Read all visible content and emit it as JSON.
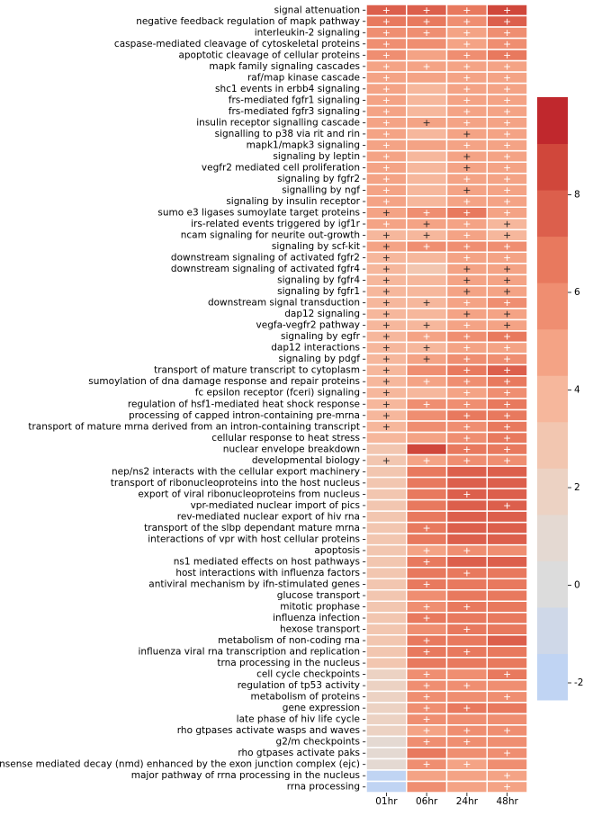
{
  "chart_data": {
    "type": "heatmap",
    "y_categories": [
      "signal attenuation",
      "negative feedback regulation of mapk pathway",
      "interleukin-2 signaling",
      "caspase-mediated cleavage of cytoskeletal proteins",
      "apoptotic cleavage of cellular proteins",
      "mapk family signaling cascades",
      "raf/map kinase cascade",
      "shc1 events in erbb4 signaling",
      "frs-mediated fgfr1 signaling",
      "frs-mediated fgfr3 signaling",
      "insulin receptor signalling cascade",
      "signalling to p38 via rit and rin",
      "mapk1/mapk3 signaling",
      "signaling by leptin",
      "vegfr2 mediated cell proliferation",
      "signaling by fgfr2",
      "signalling by ngf",
      "signaling by insulin receptor",
      "sumo e3 ligases sumoylate target proteins",
      "irs-related events triggered by igf1r",
      "ncam signaling for neurite out-growth",
      "signaling by scf-kit",
      "downstream signaling of activated fgfr2",
      "downstream signaling of activated fgfr4",
      "signaling by fgfr4",
      "signaling by fgfr1",
      "downstream signal transduction",
      "dap12 signaling",
      "vegfa-vegfr2 pathway",
      "signaling by egfr",
      "dap12 interactions",
      "signaling by pdgf",
      "transport of mature transcript to cytoplasm",
      "sumoylation of dna damage response and repair proteins",
      "fc epsilon receptor (fceri) signaling",
      "regulation of hsf1-mediated heat shock response",
      "processing of capped intron-containing pre-mrna",
      "transport of mature mrna derived from an intron-containing transcript",
      "cellular response to heat stress",
      "nuclear envelope breakdown",
      "developmental biology",
      "nep/ns2 interacts with the cellular export machinery",
      "transport of ribonucleoproteins into the host nucleus",
      "export of viral ribonucleoproteins from nucleus",
      "vpr-mediated nuclear import of pics",
      "rev-mediated nuclear export of hiv rna",
      "transport of the slbp dependant mature mrna",
      "interactions of vpr with host cellular proteins",
      "apoptosis",
      "ns1 mediated effects on host pathways",
      "host interactions with influenza factors",
      "antiviral mechanism by ifn-stimulated genes",
      "glucose transport",
      "mitotic prophase",
      "influenza infection",
      "hexose transport",
      "metabolism of non-coding rna",
      "influenza viral rna transcription and replication",
      "trna processing in the nucleus",
      "cell cycle checkpoints",
      "regulation of tp53 activity",
      "metabolism of proteins",
      "gene expression",
      "late phase of hiv life cycle",
      "rho gtpases activate wasps and waves",
      "g2/m checkpoints",
      "rho gtpases activate paks",
      "nonsense mediated decay (nmd) enhanced by the exon junction complex (ejc)",
      "major pathway of rrna processing in the nucleus",
      "rrna processing"
    ],
    "x_categories": [
      "01hr",
      "06hr",
      "24hr",
      "48hr"
    ],
    "values": [
      [
        7.5,
        7.5,
        7,
        9
      ],
      [
        7,
        6.5,
        6,
        7.5
      ],
      [
        6,
        6,
        5,
        6
      ],
      [
        6,
        6,
        5,
        6
      ],
      [
        6,
        5,
        6,
        7
      ],
      [
        5,
        5,
        5,
        5
      ],
      [
        5,
        4.5,
        5,
        5
      ],
      [
        5,
        4,
        5,
        5
      ],
      [
        5,
        4,
        5,
        5
      ],
      [
        5,
        4,
        5,
        5
      ],
      [
        5,
        4.5,
        5,
        5
      ],
      [
        5,
        4,
        4.5,
        5
      ],
      [
        5,
        4.5,
        5,
        5
      ],
      [
        5,
        4,
        4.5,
        5
      ],
      [
        5,
        4,
        4.5,
        5
      ],
      [
        5,
        4,
        5,
        5
      ],
      [
        5,
        3.5,
        4.5,
        5
      ],
      [
        5,
        4,
        5,
        5
      ],
      [
        4.5,
        6,
        7,
        5
      ],
      [
        5,
        4.5,
        5,
        4
      ],
      [
        4,
        4,
        5,
        4
      ],
      [
        4.5,
        6,
        6,
        6
      ],
      [
        4,
        3.5,
        5,
        5
      ],
      [
        4,
        3,
        4.5,
        4.5
      ],
      [
        4,
        3.5,
        4.5,
        4.5
      ],
      [
        4,
        3.5,
        4.5,
        4.5
      ],
      [
        4,
        4,
        5,
        6
      ],
      [
        4,
        3.5,
        4.5,
        4.5
      ],
      [
        4,
        3.5,
        5,
        4.5
      ],
      [
        4,
        5,
        6,
        7
      ],
      [
        4,
        4,
        5,
        5
      ],
      [
        4,
        4.5,
        5.5,
        6
      ],
      [
        4,
        6,
        6.5,
        8
      ],
      [
        3.5,
        5,
        6,
        7
      ],
      [
        4,
        4,
        5,
        6
      ],
      [
        3.5,
        6,
        6,
        7
      ],
      [
        3.5,
        6,
        6.5,
        7
      ],
      [
        3.5,
        6,
        6,
        7
      ],
      [
        3.5,
        5,
        6,
        6.5
      ],
      [
        3,
        8.5,
        7,
        7
      ],
      [
        3,
        5,
        6,
        6
      ],
      [
        3,
        7,
        7.5,
        8
      ],
      [
        3,
        7,
        7.5,
        8
      ],
      [
        3,
        7,
        7.5,
        8
      ],
      [
        3,
        7,
        8,
        8
      ],
      [
        3,
        7,
        7.5,
        8
      ],
      [
        3,
        6.5,
        7.5,
        8
      ],
      [
        3,
        7,
        7.5,
        8
      ],
      [
        3,
        5,
        6,
        6
      ],
      [
        3,
        7,
        7.5,
        7.5
      ],
      [
        3,
        6.5,
        7,
        7
      ],
      [
        3,
        6.5,
        7,
        7
      ],
      [
        2.5,
        6,
        6.5,
        7
      ],
      [
        2.5,
        6,
        6.5,
        6.5
      ],
      [
        2.5,
        6.5,
        7,
        7
      ],
      [
        2.5,
        6,
        7,
        7
      ],
      [
        2.5,
        7,
        7,
        7.5
      ],
      [
        2.5,
        6.5,
        7,
        7
      ],
      [
        2.5,
        6.5,
        6.5,
        7
      ],
      [
        2,
        6,
        5.5,
        6.5
      ],
      [
        2,
        6,
        5.5,
        6
      ],
      [
        2,
        6,
        6,
        6
      ],
      [
        1.5,
        6,
        6.5,
        6.5
      ],
      [
        1.5,
        6,
        6,
        6
      ],
      [
        1.5,
        5,
        5.5,
        6
      ],
      [
        1,
        5.5,
        5.5,
        6
      ],
      [
        0.5,
        7,
        6,
        6
      ],
      [
        0.5,
        5.5,
        5,
        6
      ],
      [
        -2,
        5,
        5,
        5
      ],
      [
        -2,
        6,
        4.5,
        5
      ]
    ],
    "annotations": [
      [
        "+",
        "+",
        "+",
        "+"
      ],
      [
        "+",
        "+",
        "+",
        "+"
      ],
      [
        "+",
        "+",
        "+",
        "+"
      ],
      [
        "+",
        null,
        "+",
        "+"
      ],
      [
        "+",
        null,
        "+",
        "+"
      ],
      [
        "+",
        "+",
        "+",
        "+"
      ],
      [
        "+",
        null,
        "+",
        "+"
      ],
      [
        "+",
        null,
        "+",
        "+"
      ],
      [
        "+",
        null,
        "+",
        "+"
      ],
      [
        "+",
        null,
        "+",
        "+"
      ],
      [
        "+",
        "+",
        "+",
        "+"
      ],
      [
        "+",
        null,
        "+",
        "+"
      ],
      [
        "+",
        null,
        "+",
        "+"
      ],
      [
        "+",
        null,
        "+",
        "+"
      ],
      [
        "+",
        null,
        "+",
        "+"
      ],
      [
        "+",
        null,
        "+",
        "+"
      ],
      [
        "+",
        null,
        "+",
        "+"
      ],
      [
        "+",
        null,
        "+",
        "+"
      ],
      [
        "+",
        "+",
        "+",
        "+"
      ],
      [
        "+",
        "+",
        "+",
        "+"
      ],
      [
        "+",
        "+",
        "+",
        "+"
      ],
      [
        "+",
        "+",
        "+",
        "+"
      ],
      [
        "+",
        null,
        "+",
        "+"
      ],
      [
        "+",
        null,
        "+",
        "+"
      ],
      [
        "+",
        null,
        "+",
        "+"
      ],
      [
        "+",
        null,
        "+",
        "+"
      ],
      [
        "+",
        "+",
        "+",
        "+"
      ],
      [
        "+",
        null,
        "+",
        "+"
      ],
      [
        "+",
        "+",
        "+",
        "+"
      ],
      [
        "+",
        "+",
        "+",
        "+"
      ],
      [
        "+",
        "+",
        "+",
        "+"
      ],
      [
        "+",
        "+",
        "+",
        "+"
      ],
      [
        "+",
        null,
        "+",
        "+"
      ],
      [
        "+",
        "+",
        "+",
        "+"
      ],
      [
        "+",
        null,
        "+",
        "+"
      ],
      [
        "+",
        "+",
        "+",
        "+"
      ],
      [
        "+",
        null,
        "+",
        "+"
      ],
      [
        "+",
        null,
        "+",
        "+"
      ],
      [
        null,
        null,
        "+",
        "+"
      ],
      [
        null,
        null,
        "+",
        "+"
      ],
      [
        "+",
        "+",
        "+",
        "+"
      ],
      [
        null,
        null,
        null,
        null
      ],
      [
        null,
        null,
        null,
        null
      ],
      [
        null,
        null,
        "+",
        null
      ],
      [
        null,
        null,
        null,
        "+"
      ],
      [
        null,
        null,
        null,
        null
      ],
      [
        null,
        "+",
        null,
        null
      ],
      [
        null,
        null,
        null,
        null
      ],
      [
        null,
        "+",
        "+",
        null
      ],
      [
        null,
        "+",
        null,
        null
      ],
      [
        null,
        null,
        "+",
        null
      ],
      [
        null,
        "+",
        null,
        null
      ],
      [
        null,
        null,
        null,
        null
      ],
      [
        null,
        "+",
        "+",
        null
      ],
      [
        null,
        "+",
        null,
        null
      ],
      [
        null,
        null,
        "+",
        null
      ],
      [
        null,
        "+",
        null,
        null
      ],
      [
        null,
        "+",
        "+",
        null
      ],
      [
        null,
        null,
        null,
        null
      ],
      [
        null,
        "+",
        null,
        "+"
      ],
      [
        null,
        "+",
        "+",
        null
      ],
      [
        null,
        "+",
        null,
        "+"
      ],
      [
        null,
        "+",
        "+",
        null
      ],
      [
        null,
        "+",
        null,
        null
      ],
      [
        null,
        "+",
        "+",
        "+"
      ],
      [
        null,
        "+",
        "+",
        null
      ],
      [
        null,
        null,
        null,
        "+"
      ],
      [
        null,
        "+",
        "+",
        null
      ],
      [
        null,
        null,
        null,
        "+"
      ],
      [
        null,
        null,
        null,
        "+"
      ]
    ],
    "vlim": [
      -2.35,
      10
    ],
    "colorbar_ticks": [
      -2,
      0,
      2,
      4,
      6,
      8
    ],
    "colors": [
      "#c0d4f3",
      "#cfd8e8",
      "#dcdcdc",
      "#e4d9d2",
      "#ecd2c3",
      "#f2c6b0",
      "#f6b79c",
      "#f4a385",
      "#ef8e71",
      "#e8795e",
      "#dc5f4c",
      "#d0473b",
      "#c0282d"
    ]
  }
}
